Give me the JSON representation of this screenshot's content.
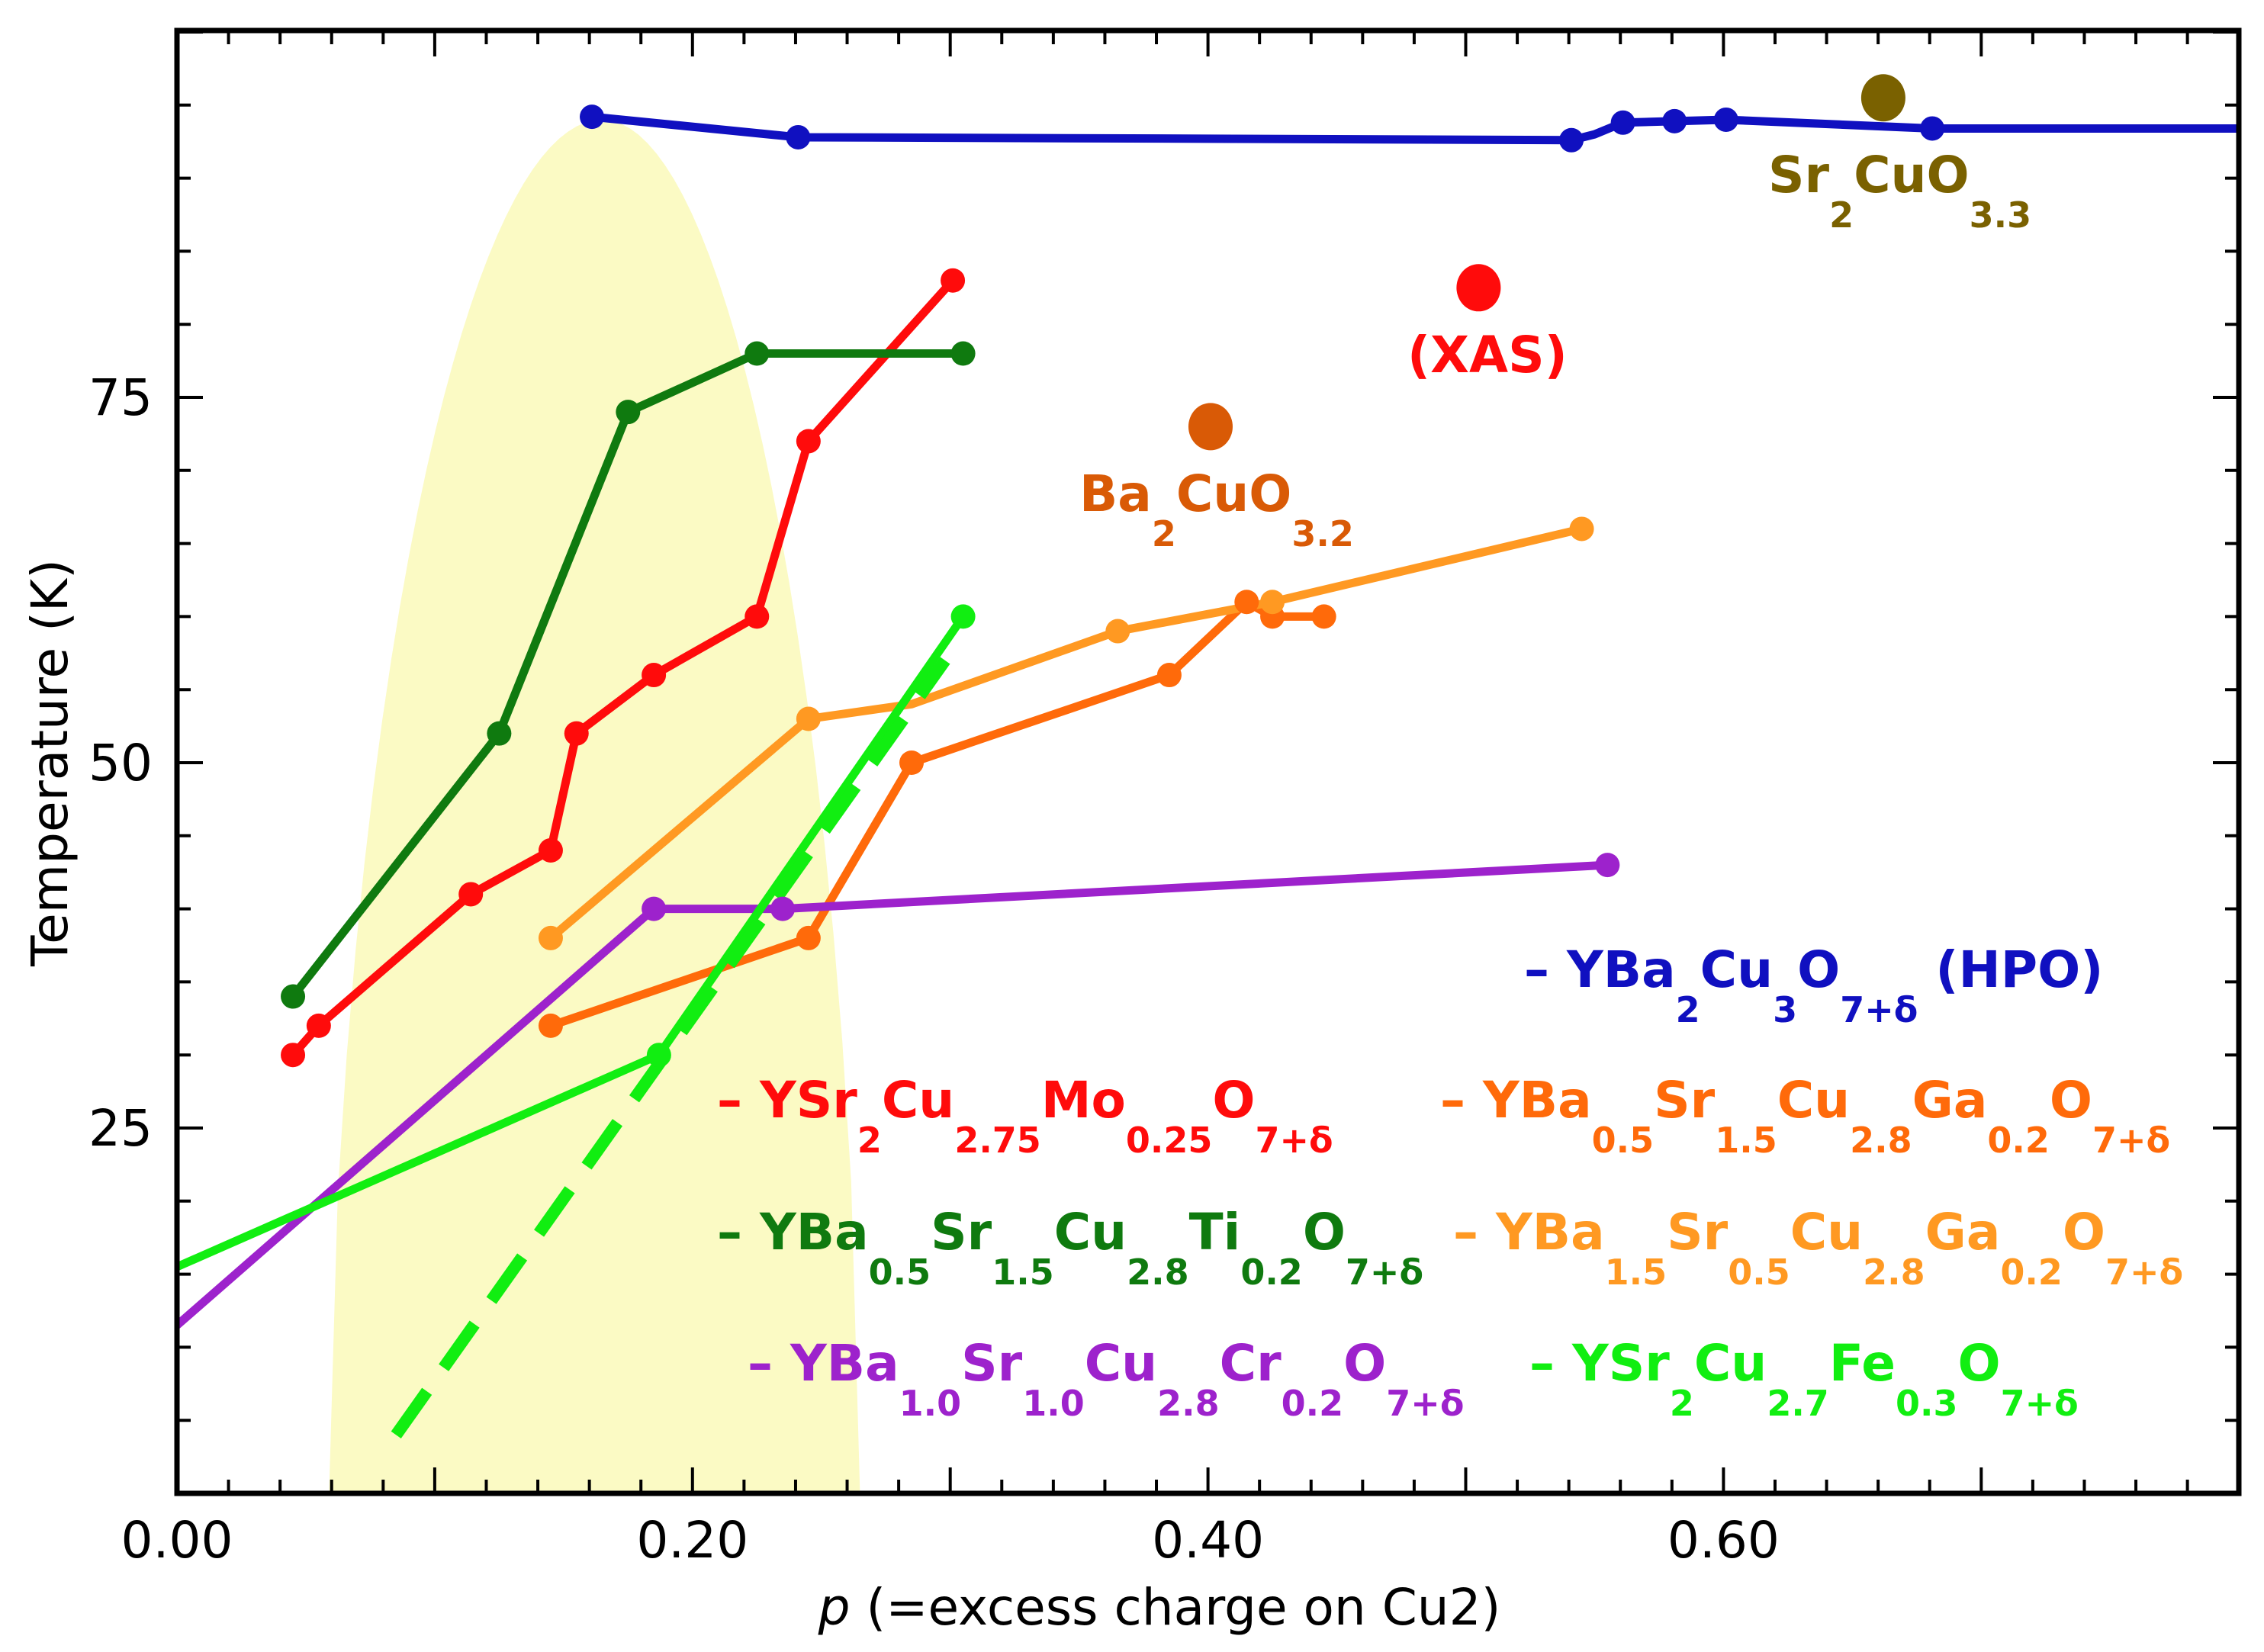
{
  "chart_data": {
    "type": "line",
    "xlabel_italic": "p",
    "xlabel_rest": " (=excess charge on Cu2)",
    "ylabel": "Temperature (K)",
    "xlim": [
      0.0,
      0.8
    ],
    "ylim": [
      0,
      100
    ],
    "x_ticks": [
      {
        "value": 0.0,
        "label": "0.00"
      },
      {
        "value": 0.2,
        "label": "0.20"
      },
      {
        "value": 0.4,
        "label": "0.40"
      },
      {
        "value": 0.6,
        "label": "0.60"
      }
    ],
    "y_ticks": [
      {
        "value": 25,
        "label": "25"
      },
      {
        "value": 50,
        "label": "50"
      },
      {
        "value": 75,
        "label": "75"
      }
    ],
    "shaded_dome": {
      "x_start": 0.059,
      "x_end": 0.265,
      "x_peak": 0.165,
      "peak": 94,
      "color": "#fbfac4"
    },
    "series": [
      {
        "name": "YBa2Cu3O7+δ (HPO)",
        "color": "#1010c0",
        "style": "solid",
        "points": [
          [
            0.161,
            94.2
          ],
          [
            0.241,
            92.8
          ],
          [
            0.4,
            92.7
          ],
          [
            0.541,
            92.6
          ],
          [
            0.55,
            93.0
          ],
          [
            0.561,
            93.8
          ],
          [
            0.581,
            93.9
          ],
          [
            0.601,
            94.0
          ],
          [
            0.681,
            93.4
          ],
          [
            0.8,
            93.4
          ]
        ],
        "markers": [
          0,
          1,
          3,
          5,
          6,
          7,
          8
        ]
      },
      {
        "name": "YSr2Cu2.75Mo0.25O7+δ",
        "color": "#ff0b0b",
        "style": "solid",
        "points": [
          [
            0.045,
            30
          ],
          [
            0.055,
            32
          ],
          [
            0.114,
            41
          ],
          [
            0.145,
            44
          ],
          [
            0.155,
            52
          ],
          [
            0.185,
            56
          ],
          [
            0.225,
            60
          ],
          [
            0.245,
            72
          ],
          [
            0.301,
            83
          ]
        ],
        "markers": [
          0,
          1,
          2,
          3,
          4,
          5,
          6,
          7,
          8
        ]
      },
      {
        "name": "YBa0.5Sr1.5Cu2.8Ti0.2O7+δ",
        "color": "#0f7a0f",
        "style": "solid",
        "points": [
          [
            0.045,
            34
          ],
          [
            0.125,
            52
          ],
          [
            0.175,
            74
          ],
          [
            0.225,
            78
          ],
          [
            0.305,
            78
          ]
        ],
        "markers": [
          0,
          1,
          2,
          3,
          4
        ]
      },
      {
        "name": "YBa0.5Sr1.5Cu2.8Ga0.2O7+δ",
        "color": "#ff6a0a",
        "style": "solid",
        "points": [
          [
            0.145,
            32
          ],
          [
            0.245,
            38
          ],
          [
            0.285,
            50
          ],
          [
            0.385,
            56
          ],
          [
            0.415,
            61
          ],
          [
            0.425,
            60
          ],
          [
            0.445,
            60
          ]
        ],
        "markers": [
          0,
          1,
          2,
          3,
          4,
          5,
          6
        ]
      },
      {
        "name": "YBa1.5Sr0.5Cu2.8Ga0.2O7+δ",
        "color": "#ff9922",
        "style": "solid",
        "points": [
          [
            0.145,
            38
          ],
          [
            0.245,
            53
          ],
          [
            0.285,
            54
          ],
          [
            0.365,
            59
          ],
          [
            0.425,
            61
          ],
          [
            0.545,
            66
          ]
        ],
        "markers": [
          0,
          1,
          3,
          4,
          5
        ]
      },
      {
        "name": "YBa1.0Sr1.0Cu2.8Cr0.2O7+δ",
        "color": "#9d22cc",
        "style": "solid",
        "points": [
          [
            0.0,
            11.5
          ],
          [
            0.185,
            40
          ],
          [
            0.235,
            40
          ],
          [
            0.555,
            43
          ]
        ],
        "markers": [
          1,
          2,
          3
        ]
      },
      {
        "name": "YSr2Cu2.7Fe0.3O7+δ",
        "color": "#11ee11",
        "style": "solid",
        "points": [
          [
            0.0,
            15.5
          ],
          [
            0.187,
            30
          ],
          [
            0.305,
            60
          ]
        ],
        "markers": [
          1,
          2
        ]
      },
      {
        "name": "YSr2Cu2.7Fe0.3O7+δ (extrapolation)",
        "color": "#11ee11",
        "style": "dashed",
        "points": [
          [
            0.085,
            4
          ],
          [
            0.298,
            57
          ]
        ],
        "markers": []
      }
    ],
    "isolated_points": [
      {
        "name": "Sr2CuO3.3",
        "x": 0.662,
        "y": 95.5,
        "color": "#7a6100"
      },
      {
        "name": "XAS",
        "x": 0.505,
        "y": 82.5,
        "color": "#ff0b0b"
      },
      {
        "name": "Ba2CuO3.2",
        "x": 0.401,
        "y": 73.0,
        "color": "#d95a06"
      }
    ]
  },
  "labels": {
    "sr2cuo": {
      "color": "#7a6100",
      "parts": [
        [
          "Sr",
          ""
        ],
        [
          "2",
          "sub"
        ],
        [
          "CuO",
          ""
        ],
        [
          "3.3",
          "sub"
        ]
      ]
    },
    "xas": {
      "color": "#ff0b0b",
      "parts": [
        [
          "(XAS)",
          ""
        ]
      ]
    },
    "ba2cuo": {
      "color": "#d95a06",
      "parts": [
        [
          "Ba",
          ""
        ],
        [
          "2",
          "sub"
        ],
        [
          "CuO",
          ""
        ],
        [
          "3.2",
          "sub"
        ]
      ]
    },
    "legend_hpo": {
      "color": "#1010c0",
      "parts": [
        [
          "– YBa",
          ""
        ],
        [
          "2",
          "sub"
        ],
        [
          "Cu",
          ""
        ],
        [
          "3",
          "sub"
        ],
        [
          "O",
          ""
        ],
        [
          "7+δ",
          "sub"
        ],
        [
          " (HPO)",
          ""
        ]
      ]
    },
    "legend_mo": {
      "color": "#ff0b0b",
      "parts": [
        [
          "– YSr",
          ""
        ],
        [
          "2",
          "sub"
        ],
        [
          "Cu",
          ""
        ],
        [
          "2.75",
          "sub"
        ],
        [
          "Mo",
          ""
        ],
        [
          "0.25",
          "sub"
        ],
        [
          "O",
          ""
        ],
        [
          "7+δ",
          "sub"
        ]
      ]
    },
    "legend_ga05": {
      "color": "#ff6a0a",
      "parts": [
        [
          "– YBa",
          ""
        ],
        [
          "0.5",
          "sub"
        ],
        [
          "Sr",
          ""
        ],
        [
          "1.5",
          "sub"
        ],
        [
          "Cu",
          ""
        ],
        [
          "2.8",
          "sub"
        ],
        [
          "Ga",
          ""
        ],
        [
          "0.2",
          "sub"
        ],
        [
          "O",
          ""
        ],
        [
          "7+δ",
          "sub"
        ]
      ]
    },
    "legend_ti": {
      "color": "#0f7a0f",
      "parts": [
        [
          "– YBa",
          ""
        ],
        [
          "0.5",
          "sub"
        ],
        [
          "Sr",
          ""
        ],
        [
          "1.5",
          "sub"
        ],
        [
          "Cu",
          ""
        ],
        [
          "2.8",
          "sub"
        ],
        [
          "Ti",
          ""
        ],
        [
          "0.2",
          "sub"
        ],
        [
          "O",
          ""
        ],
        [
          "7+δ",
          "sub"
        ]
      ]
    },
    "legend_ga15": {
      "color": "#ff9922",
      "parts": [
        [
          "– YBa",
          ""
        ],
        [
          "1.5",
          "sub"
        ],
        [
          "Sr",
          ""
        ],
        [
          "0.5",
          "sub"
        ],
        [
          "Cu",
          ""
        ],
        [
          "2.8",
          "sub"
        ],
        [
          "Ga",
          ""
        ],
        [
          "0.2",
          "sub"
        ],
        [
          "O",
          ""
        ],
        [
          "7+δ",
          "sub"
        ]
      ]
    },
    "legend_cr": {
      "color": "#9d22cc",
      "parts": [
        [
          "– YBa",
          ""
        ],
        [
          "1.0",
          "sub"
        ],
        [
          "Sr",
          ""
        ],
        [
          "1.0",
          "sub"
        ],
        [
          "Cu",
          ""
        ],
        [
          "2.8",
          "sub"
        ],
        [
          "Cr",
          ""
        ],
        [
          "0.2",
          "sub"
        ],
        [
          "O",
          ""
        ],
        [
          "7+δ",
          "sub"
        ]
      ]
    },
    "legend_fe": {
      "color": "#11ee11",
      "parts": [
        [
          "– YSr",
          ""
        ],
        [
          "2",
          "sub"
        ],
        [
          "Cu",
          ""
        ],
        [
          "2.7",
          "sub"
        ],
        [
          "Fe",
          ""
        ],
        [
          "0.3",
          "sub"
        ],
        [
          "O",
          ""
        ],
        [
          "7+δ",
          "sub"
        ]
      ]
    }
  }
}
